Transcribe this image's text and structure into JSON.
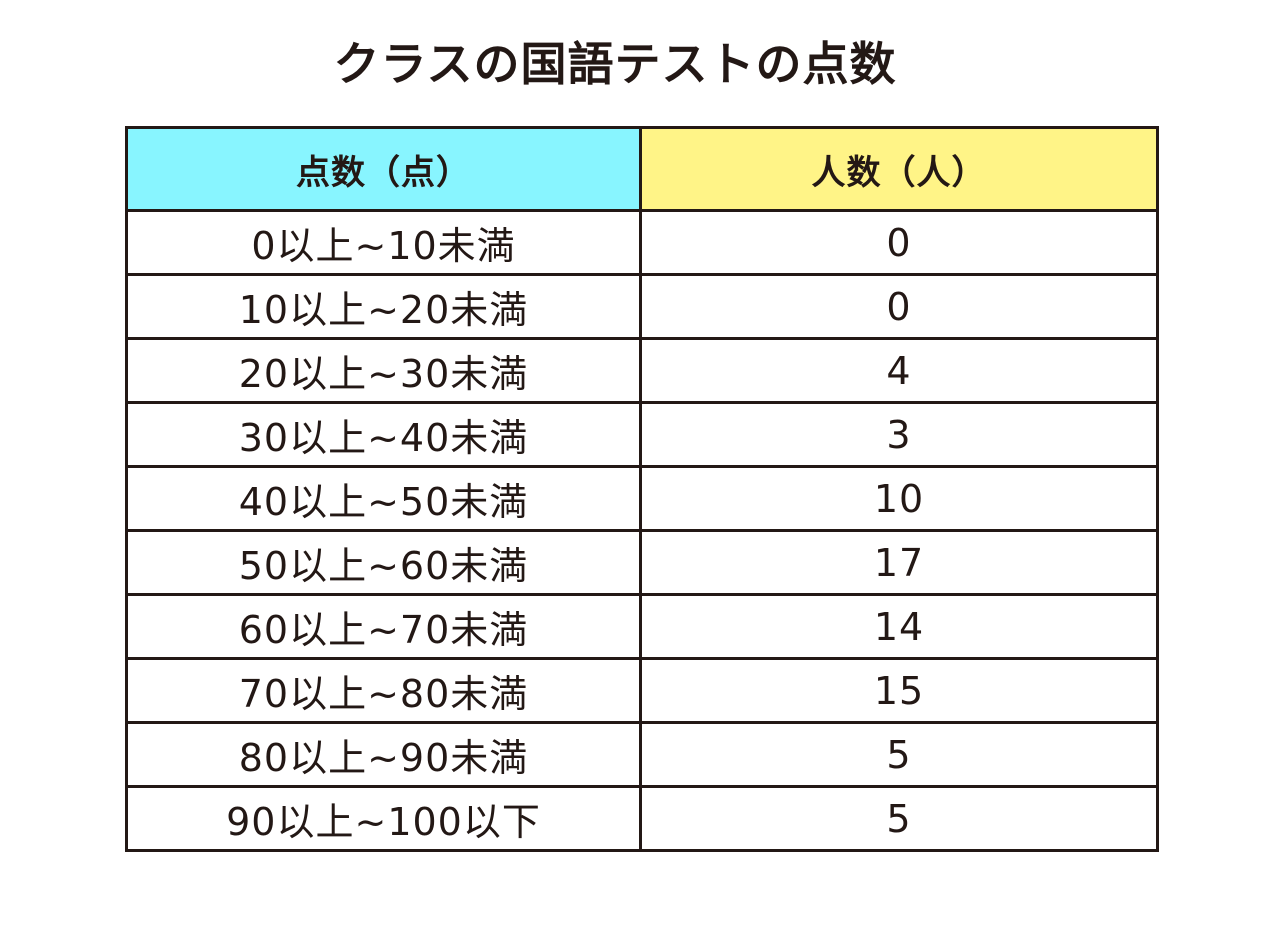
{
  "title": "クラスの国語テストの点数",
  "colors": {
    "header_left_bg": "#88f5ff",
    "header_right_bg": "#fff487",
    "border": "#231815",
    "text": "#231815"
  },
  "chart_data": {
    "type": "table",
    "title": "クラスの国語テストの点数",
    "columns": [
      "点数（点）",
      "人数（人）"
    ],
    "rows": [
      {
        "range": "0以上~10未満",
        "count": "0"
      },
      {
        "range": "10以上~20未満",
        "count": "0"
      },
      {
        "range": "20以上~30未満",
        "count": "4"
      },
      {
        "range": "30以上~40未満",
        "count": "3"
      },
      {
        "range": "40以上~50未満",
        "count": "10"
      },
      {
        "range": "50以上~60未満",
        "count": "17"
      },
      {
        "range": "60以上~70未満",
        "count": "14"
      },
      {
        "range": "70以上~80未満",
        "count": "15"
      },
      {
        "range": "80以上~90未満",
        "count": "5"
      },
      {
        "range": "90以上~100以下",
        "count": "5"
      }
    ]
  }
}
